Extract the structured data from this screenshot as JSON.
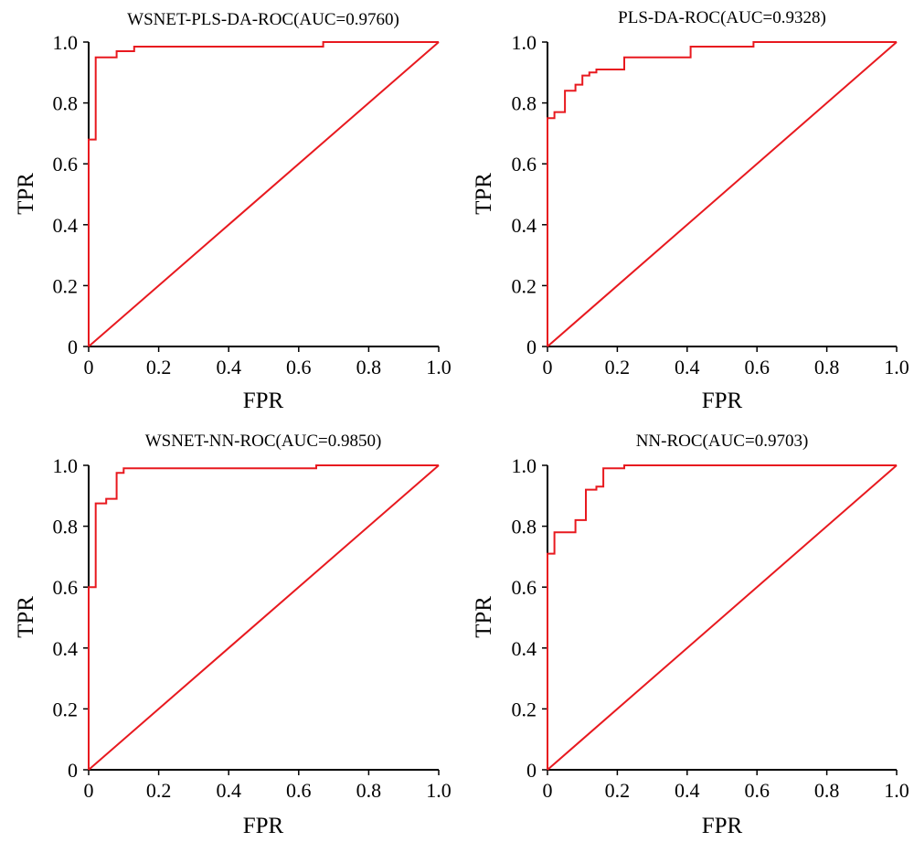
{
  "chart_data": [
    {
      "type": "line",
      "title": "WSNET-PLS-DA-ROC(AUC=0.9760)",
      "xlabel": "FPR",
      "ylabel": "TPR",
      "xlim": [
        0,
        1
      ],
      "ylim": [
        0,
        1
      ],
      "xticks": [
        "0",
        "0.2",
        "0.4",
        "0.6",
        "0.8",
        "1.0"
      ],
      "yticks": [
        "0",
        "0.2",
        "0.4",
        "0.6",
        "0.8",
        "1.0"
      ],
      "grid": false,
      "line_color": "#e8191f",
      "diagonal": true,
      "roc": {
        "fpr": [
          0,
          0,
          0.02,
          0.02,
          0.08,
          0.08,
          0.13,
          0.13,
          0.67,
          0.67,
          1.0
        ],
        "tpr": [
          0,
          0.68,
          0.68,
          0.95,
          0.95,
          0.97,
          0.97,
          0.985,
          0.985,
          1.0,
          1.0
        ]
      }
    },
    {
      "type": "line",
      "title": "PLS-DA-ROC(AUC=0.9328)",
      "xlabel": "FPR",
      "ylabel": "TPR",
      "xlim": [
        0,
        1
      ],
      "ylim": [
        0,
        1
      ],
      "xticks": [
        "0",
        "0.2",
        "0.4",
        "0.6",
        "0.8",
        "1.0"
      ],
      "yticks": [
        "0",
        "0.2",
        "0.4",
        "0.6",
        "0.8",
        "1.0"
      ],
      "grid": false,
      "line_color": "#e8191f",
      "diagonal": true,
      "roc": {
        "fpr": [
          0,
          0,
          0.02,
          0.02,
          0.05,
          0.05,
          0.08,
          0.08,
          0.1,
          0.1,
          0.12,
          0.12,
          0.14,
          0.14,
          0.22,
          0.22,
          0.41,
          0.41,
          0.59,
          0.59,
          1.0
        ],
        "tpr": [
          0,
          0.75,
          0.75,
          0.77,
          0.77,
          0.84,
          0.84,
          0.86,
          0.86,
          0.89,
          0.89,
          0.9,
          0.9,
          0.91,
          0.91,
          0.95,
          0.95,
          0.985,
          0.985,
          1.0,
          1.0
        ]
      }
    },
    {
      "type": "line",
      "title": "WSNET-NN-ROC(AUC=0.9850)",
      "xlabel": "FPR",
      "ylabel": "TPR",
      "xlim": [
        0,
        1
      ],
      "ylim": [
        0,
        1
      ],
      "xticks": [
        "0",
        "0.2",
        "0.4",
        "0.6",
        "0.8",
        "1.0"
      ],
      "yticks": [
        "0",
        "0.2",
        "0.4",
        "0.6",
        "0.8",
        "1.0"
      ],
      "grid": false,
      "line_color": "#e8191f",
      "diagonal": true,
      "roc": {
        "fpr": [
          0,
          0,
          0.02,
          0.02,
          0.05,
          0.05,
          0.08,
          0.08,
          0.1,
          0.1,
          0.65,
          0.65,
          1.0
        ],
        "tpr": [
          0,
          0.6,
          0.6,
          0.875,
          0.875,
          0.89,
          0.89,
          0.975,
          0.975,
          0.99,
          0.99,
          1.0,
          1.0
        ]
      }
    },
    {
      "type": "line",
      "title": "NN-ROC(AUC=0.9703)",
      "xlabel": "FPR",
      "ylabel": "TPR",
      "xlim": [
        0,
        1
      ],
      "ylim": [
        0,
        1
      ],
      "xticks": [
        "0",
        "0.2",
        "0.4",
        "0.6",
        "0.8",
        "1.0"
      ],
      "yticks": [
        "0",
        "0.2",
        "0.4",
        "0.6",
        "0.8",
        "1.0"
      ],
      "grid": false,
      "line_color": "#e8191f",
      "diagonal": true,
      "roc": {
        "fpr": [
          0,
          0,
          0.02,
          0.02,
          0.08,
          0.08,
          0.11,
          0.11,
          0.14,
          0.14,
          0.16,
          0.16,
          0.22,
          0.22,
          1.0
        ],
        "tpr": [
          0,
          0.71,
          0.71,
          0.78,
          0.78,
          0.82,
          0.82,
          0.92,
          0.92,
          0.93,
          0.93,
          0.99,
          0.99,
          1.0,
          1.0
        ]
      }
    }
  ]
}
